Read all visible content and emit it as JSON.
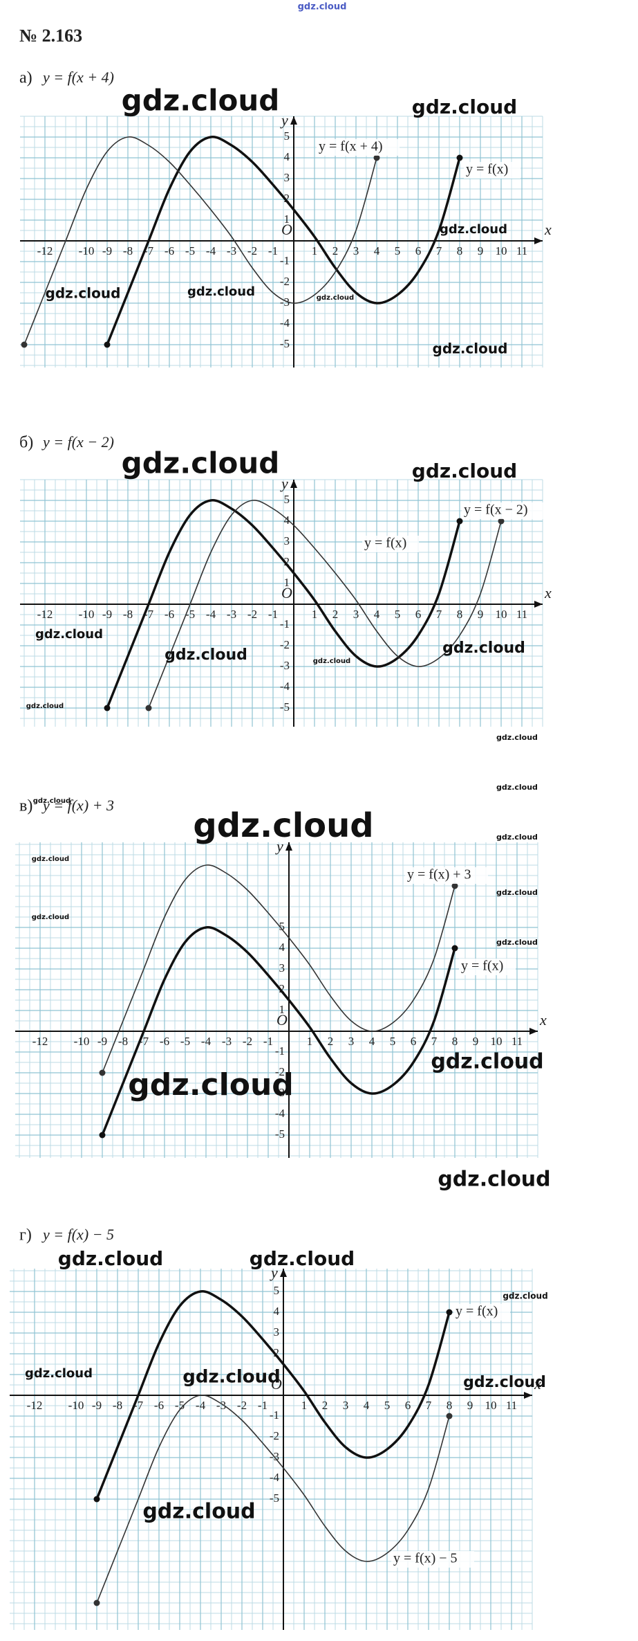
{
  "header": {
    "title": "№ 2.163"
  },
  "watermarks": [
    "gdz.cloud",
    "gdz.cloud",
    "gdz.cloud",
    "gdz.cloud",
    "gdz.cloud",
    "gdz.cloud",
    "gdz.cloud",
    "gdz.cloud",
    "gdz.cloud",
    "gdz.cloud",
    "gdz.cloud",
    "gdz.cloud",
    "gdz.cloud",
    "gdz.cloud",
    "gdz.cloud",
    "gdz.cloud",
    "gdz.cloud",
    "gdz.cloud",
    "gdz.cloud",
    "gdz.cloud",
    "gdz.cloud",
    "gdz.cloud",
    "gdz.cloud",
    "gdz.cloud",
    "gdz.cloud",
    "gdz.cloud",
    "gdz.cloud",
    "gdz.cloud",
    "gdz.cloud",
    "gdz.cloud",
    "gdz.cloud",
    "gdz.cloud",
    "gdz.cloud",
    "gdz.cloud"
  ],
  "chart_data": [
    {
      "type": "line",
      "label": "а)",
      "title": "y = f(x + 4)",
      "x_label": "x",
      "y_label": "y",
      "origin_label": "O",
      "xlim": [
        -13.2,
        12
      ],
      "ylim": [
        -6.1,
        6
      ],
      "xticks": [
        -12,
        -10,
        -9,
        -8,
        -7,
        -6,
        -5,
        -4,
        -3,
        -2,
        -1,
        1,
        2,
        3,
        4,
        5,
        6,
        7,
        8,
        9,
        10,
        11
      ],
      "yticks": [
        -5,
        -4,
        -3,
        -2,
        -1,
        1,
        2,
        3,
        4,
        5
      ],
      "series": [
        {
          "name": "y = f(x)",
          "color": "#111",
          "x": [
            -9,
            -8,
            -7,
            -6,
            -5,
            -4,
            -3,
            -2,
            -1,
            0,
            1,
            2,
            3,
            4,
            5,
            6,
            7,
            8
          ],
          "values": [
            -5,
            -2.5,
            0,
            2.5,
            4.3,
            5,
            4.6,
            3.8,
            2.7,
            1.5,
            0.2,
            -1.3,
            -2.5,
            -3,
            -2.6,
            -1.5,
            0.5,
            4
          ]
        },
        {
          "name": "y = f(x + 4)",
          "color": "#333",
          "x": [
            -13,
            -12,
            -11,
            -10,
            -9,
            -8,
            -7,
            -6,
            -5,
            -4,
            -3,
            -2,
            -1,
            0,
            1,
            2,
            3,
            4
          ],
          "values": [
            -5,
            -2.5,
            0,
            2.5,
            4.3,
            5,
            4.6,
            3.8,
            2.7,
            1.5,
            0.2,
            -1.3,
            -2.5,
            -3,
            -2.6,
            -1.5,
            0.5,
            4
          ]
        }
      ]
    },
    {
      "type": "line",
      "label": "б)",
      "title": "y = f(x − 2)",
      "x_label": "x",
      "y_label": "y",
      "origin_label": "O",
      "xlim": [
        -13.2,
        12
      ],
      "ylim": [
        -5.9,
        6
      ],
      "xticks": [
        -12,
        -10,
        -9,
        -8,
        -7,
        -6,
        -5,
        -4,
        -3,
        -2,
        -1,
        1,
        2,
        3,
        4,
        5,
        6,
        7,
        8,
        9,
        10,
        11
      ],
      "yticks": [
        -5,
        -4,
        -3,
        -2,
        -1,
        1,
        2,
        3,
        4,
        5
      ],
      "series": [
        {
          "name": "y = f(x)",
          "color": "#111",
          "x": [
            -9,
            -8,
            -7,
            -6,
            -5,
            -4,
            -3,
            -2,
            -1,
            0,
            1,
            2,
            3,
            4,
            5,
            6,
            7,
            8
          ],
          "values": [
            -5,
            -2.5,
            0,
            2.5,
            4.3,
            5,
            4.6,
            3.8,
            2.7,
            1.5,
            0.2,
            -1.3,
            -2.5,
            -3,
            -2.6,
            -1.5,
            0.5,
            4
          ]
        },
        {
          "name": "y = f(x − 2)",
          "color": "#333",
          "x": [
            -7,
            -6,
            -5,
            -4,
            -3,
            -2,
            -1,
            0,
            1,
            2,
            3,
            4,
            5,
            6,
            7,
            8,
            9,
            10
          ],
          "values": [
            -5,
            -2.5,
            0,
            2.5,
            4.3,
            5,
            4.6,
            3.8,
            2.7,
            1.5,
            0.2,
            -1.3,
            -2.5,
            -3,
            -2.6,
            -1.5,
            0.5,
            4
          ]
        }
      ]
    },
    {
      "type": "line",
      "label": "в)",
      "title": "y = f(x) + 3",
      "x_label": "x",
      "y_label": "y",
      "origin_label": "O",
      "xlim": [
        -13.2,
        12
      ],
      "ylim": [
        -6.1,
        9.1
      ],
      "xticks": [
        -12,
        -10,
        -9,
        -8,
        -7,
        -6,
        -5,
        -4,
        -3,
        -2,
        -1,
        1,
        2,
        3,
        4,
        5,
        6,
        7,
        8,
        9,
        10,
        11
      ],
      "yticks": [
        -5,
        -4,
        -3,
        -2,
        -1,
        1,
        2,
        3,
        4,
        5
      ],
      "series": [
        {
          "name": "y = f(x)",
          "color": "#111",
          "x": [
            -9,
            -8,
            -7,
            -6,
            -5,
            -4,
            -3,
            -2,
            -1,
            0,
            1,
            2,
            3,
            4,
            5,
            6,
            7,
            8
          ],
          "values": [
            -5,
            -2.5,
            0,
            2.5,
            4.3,
            5,
            4.6,
            3.8,
            2.7,
            1.5,
            0.2,
            -1.3,
            -2.5,
            -3,
            -2.6,
            -1.5,
            0.5,
            4
          ]
        },
        {
          "name": "y = f(x) + 3",
          "color": "#333",
          "x": [
            -9,
            -8,
            -7,
            -6,
            -5,
            -4,
            -3,
            -2,
            -1,
            0,
            1,
            2,
            3,
            4,
            5,
            6,
            7,
            8
          ],
          "values": [
            -2,
            0.5,
            3,
            5.5,
            7.3,
            8,
            7.6,
            6.8,
            5.7,
            4.5,
            3.2,
            1.7,
            0.5,
            0,
            0.4,
            1.5,
            3.5,
            7
          ]
        }
      ]
    },
    {
      "type": "line",
      "label": "г)",
      "title": "y = f(x) − 5",
      "x_label": "x",
      "y_label": "y",
      "origin_label": "O",
      "xlim": [
        -13.2,
        12
      ],
      "ylim": [
        -11.3,
        6.1
      ],
      "xticks": [
        -12,
        -10,
        -9,
        -8,
        -7,
        -6,
        -5,
        -4,
        -3,
        -2,
        -1,
        1,
        2,
        3,
        4,
        5,
        6,
        7,
        8,
        9,
        10,
        11
      ],
      "yticks": [
        -5,
        -4,
        -3,
        -2,
        -1,
        1,
        2,
        3,
        4,
        5
      ],
      "series": [
        {
          "name": "y = f(x)",
          "color": "#111",
          "x": [
            -9,
            -8,
            -7,
            -6,
            -5,
            -4,
            -3,
            -2,
            -1,
            0,
            1,
            2,
            3,
            4,
            5,
            6,
            7,
            8
          ],
          "values": [
            -5,
            -2.5,
            0,
            2.5,
            4.3,
            5,
            4.6,
            3.8,
            2.7,
            1.5,
            0.2,
            -1.3,
            -2.5,
            -3,
            -2.6,
            -1.5,
            0.5,
            4
          ]
        },
        {
          "name": "y = f(x) − 5",
          "color": "#333",
          "x": [
            -9,
            -8,
            -7,
            -6,
            -5,
            -4,
            -3,
            -2,
            -1,
            0,
            1,
            2,
            3,
            4,
            5,
            6,
            7,
            8
          ],
          "values": [
            -10,
            -7.5,
            -5,
            -2.5,
            -0.7,
            0,
            -0.4,
            -1.2,
            -2.3,
            -3.5,
            -4.8,
            -6.3,
            -7.5,
            -8,
            -7.6,
            -6.5,
            -4.5,
            -1
          ]
        }
      ]
    }
  ]
}
